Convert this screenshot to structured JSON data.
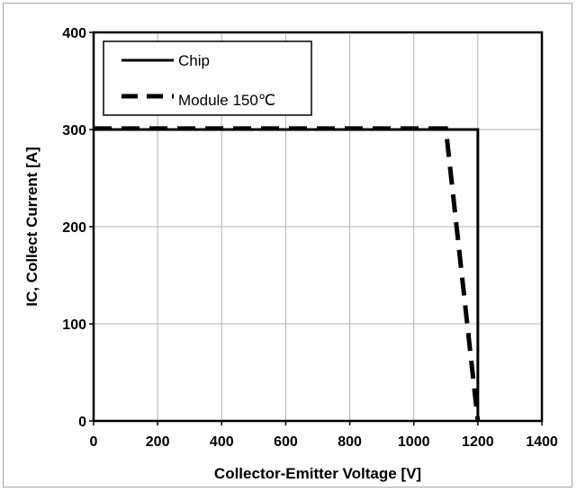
{
  "chart_data": {
    "type": "line",
    "title": "",
    "xlabel": "Collector-Emitter Voltage [V]",
    "ylabel": "IC, Collect Current [A]",
    "xlim": [
      0,
      1400
    ],
    "ylim": [
      0,
      400
    ],
    "xticks": [
      0,
      200,
      400,
      600,
      800,
      1000,
      1200,
      1400
    ],
    "yticks": [
      0,
      100,
      200,
      300,
      400
    ],
    "grid": true,
    "legend_position": "top-left",
    "series": [
      {
        "name": "Chip",
        "style": "solid",
        "color": "#000000",
        "x": [
          0,
          1200,
          1200
        ],
        "y": [
          300,
          300,
          0
        ]
      },
      {
        "name": "Module 150℃",
        "style": "dashed",
        "color": "#000000",
        "x": [
          0,
          1100,
          1200
        ],
        "y": [
          301,
          301,
          0
        ]
      }
    ]
  }
}
